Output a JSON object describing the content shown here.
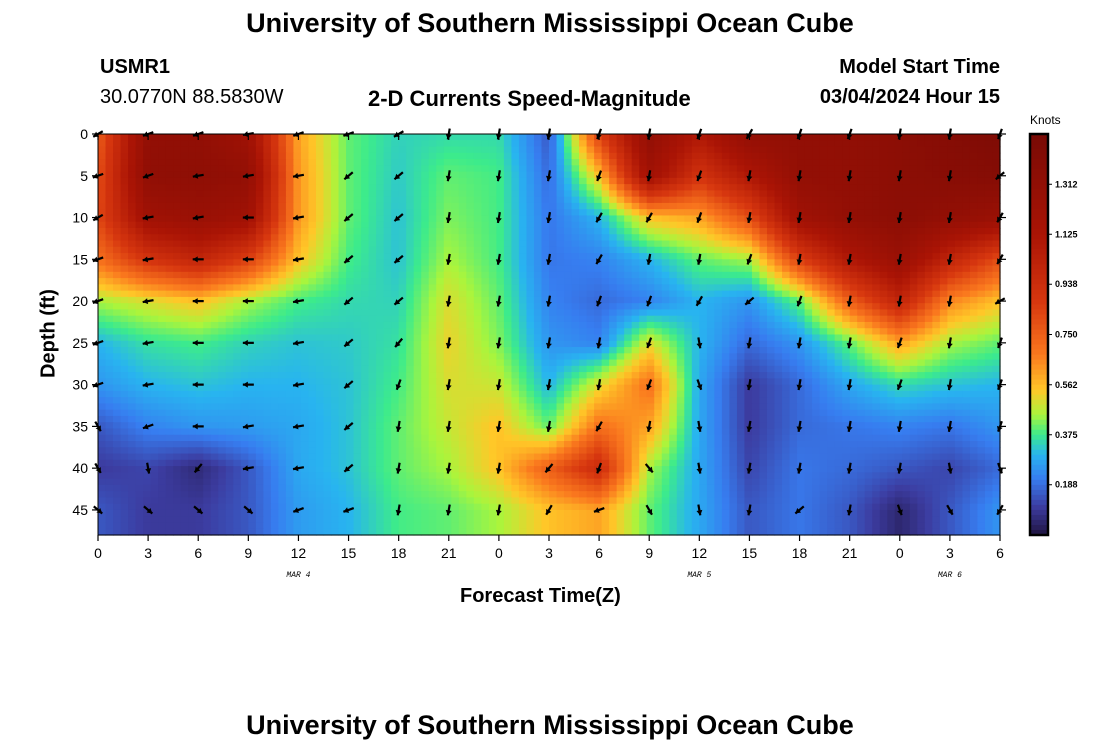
{
  "header": {
    "title": "University of Southern Mississippi Ocean Cube",
    "station_id": "USMR1",
    "station_coords": "30.0770N  88.5830W",
    "plot_title": "2-D Currents Speed-Magnitude",
    "model_start_label": "Model Start Time",
    "model_start_value": "03/04/2024 Hour 15"
  },
  "footer": {
    "title": "University of Southern Mississippi Ocean Cube"
  },
  "chart_data": {
    "type": "heatmap",
    "title": "2-D Currents Speed-Magnitude",
    "xlabel": "Forecast Time(Z)",
    "ylabel": "Depth (ft)",
    "colorbar_label": "Knots",
    "x_tick_labels": [
      "0",
      "3",
      "6",
      "9",
      "12",
      "15",
      "18",
      "21",
      "0",
      "3",
      "6",
      "9",
      "12",
      "15",
      "18",
      "21",
      "0",
      "3",
      "6"
    ],
    "x_date_labels": [
      {
        "label": "MAR 4",
        "at_tick": 4
      },
      {
        "label": "MAR 5",
        "at_tick": 12
      },
      {
        "label": "MAR 6",
        "at_tick": 17
      }
    ],
    "y_tick_labels": [
      "0",
      "5",
      "10",
      "15",
      "20",
      "25",
      "30",
      "35",
      "40",
      "45"
    ],
    "y_values_ft": [
      0,
      5,
      10,
      15,
      20,
      25,
      30,
      35,
      40,
      45
    ],
    "y_range_ft": [
      0,
      48
    ],
    "x_range_hours": [
      0,
      54
    ],
    "colorbar_ticks": [
      "1.312",
      "1.125",
      "0.938",
      "0.750",
      "0.562",
      "0.375",
      "0.188"
    ],
    "colorbar_range_knots": [
      0.0,
      1.5
    ],
    "speed_knots_grid": [
      [
        0.75,
        1.3,
        1.31,
        1.2,
        0.6,
        0.4,
        0.34,
        0.35,
        0.35,
        0.15,
        0.85,
        1.3,
        1.1,
        1.3,
        1.31,
        1.31,
        1.35,
        1.4,
        1.45
      ],
      [
        0.8,
        1.32,
        1.33,
        1.3,
        0.62,
        0.4,
        0.33,
        0.4,
        0.38,
        0.18,
        0.55,
        1.2,
        0.9,
        1.1,
        1.3,
        1.31,
        1.35,
        1.38,
        1.4
      ],
      [
        0.82,
        1.2,
        1.25,
        1.2,
        0.62,
        0.4,
        0.32,
        0.42,
        0.38,
        0.2,
        0.3,
        0.55,
        0.6,
        0.8,
        1.2,
        1.3,
        1.35,
        1.3,
        1.25
      ],
      [
        0.7,
        0.9,
        1.0,
        0.85,
        0.55,
        0.38,
        0.32,
        0.45,
        0.38,
        0.2,
        0.22,
        0.3,
        0.4,
        0.45,
        0.85,
        1.1,
        1.25,
        1.0,
        0.8
      ],
      [
        0.45,
        0.5,
        0.55,
        0.45,
        0.38,
        0.35,
        0.34,
        0.5,
        0.4,
        0.22,
        0.18,
        0.22,
        0.3,
        0.25,
        0.4,
        0.75,
        1.0,
        0.65,
        0.55
      ],
      [
        0.3,
        0.36,
        0.38,
        0.34,
        0.32,
        0.33,
        0.36,
        0.52,
        0.42,
        0.25,
        0.22,
        0.5,
        0.3,
        0.18,
        0.25,
        0.4,
        0.6,
        0.45,
        0.4
      ],
      [
        0.25,
        0.3,
        0.32,
        0.3,
        0.3,
        0.32,
        0.38,
        0.5,
        0.48,
        0.3,
        0.5,
        0.7,
        0.28,
        0.1,
        0.18,
        0.28,
        0.35,
        0.32,
        0.3
      ],
      [
        0.15,
        0.22,
        0.25,
        0.26,
        0.28,
        0.32,
        0.4,
        0.48,
        0.55,
        0.4,
        0.7,
        0.6,
        0.28,
        0.1,
        0.18,
        0.2,
        0.22,
        0.2,
        0.25
      ],
      [
        0.1,
        0.12,
        0.06,
        0.15,
        0.28,
        0.32,
        0.4,
        0.45,
        0.55,
        0.75,
        0.95,
        0.45,
        0.28,
        0.12,
        0.2,
        0.18,
        0.15,
        0.12,
        0.18
      ],
      [
        0.15,
        0.1,
        0.1,
        0.15,
        0.26,
        0.3,
        0.38,
        0.4,
        0.45,
        0.55,
        0.6,
        0.4,
        0.28,
        0.15,
        0.2,
        0.15,
        0.05,
        0.15,
        0.25
      ]
    ],
    "vector_directions_deg": [
      [
        240,
        250,
        250,
        260,
        250,
        250,
        240,
        190,
        190,
        190,
        200,
        190,
        200,
        210,
        200,
        200,
        190,
        190,
        200
      ],
      [
        250,
        250,
        260,
        260,
        260,
        230,
        230,
        190,
        190,
        190,
        200,
        190,
        200,
        190,
        190,
        190,
        190,
        190,
        230
      ],
      [
        240,
        260,
        260,
        270,
        260,
        230,
        230,
        190,
        190,
        190,
        210,
        210,
        200,
        190,
        190,
        190,
        190,
        190,
        210
      ],
      [
        250,
        260,
        270,
        270,
        260,
        230,
        230,
        190,
        190,
        190,
        210,
        190,
        190,
        200,
        190,
        190,
        190,
        190,
        210
      ],
      [
        250,
        260,
        270,
        270,
        260,
        230,
        230,
        190,
        190,
        190,
        200,
        200,
        210,
        230,
        200,
        190,
        190,
        190,
        240
      ],
      [
        250,
        260,
        270,
        270,
        260,
        230,
        220,
        190,
        190,
        190,
        190,
        200,
        170,
        190,
        190,
        190,
        200,
        190,
        200
      ],
      [
        250,
        260,
        270,
        270,
        260,
        230,
        200,
        190,
        190,
        190,
        190,
        200,
        160,
        190,
        190,
        190,
        200,
        190,
        200
      ],
      [
        150,
        250,
        270,
        260,
        260,
        230,
        190,
        190,
        190,
        190,
        210,
        190,
        170,
        190,
        190,
        190,
        190,
        190,
        200
      ],
      [
        150,
        170,
        220,
        260,
        260,
        230,
        190,
        190,
        190,
        220,
        200,
        140,
        170,
        190,
        190,
        190,
        190,
        170,
        160
      ],
      [
        130,
        130,
        130,
        130,
        250,
        250,
        190,
        190,
        190,
        210,
        250,
        150,
        170,
        190,
        230,
        190,
        160,
        150,
        210
      ]
    ]
  }
}
